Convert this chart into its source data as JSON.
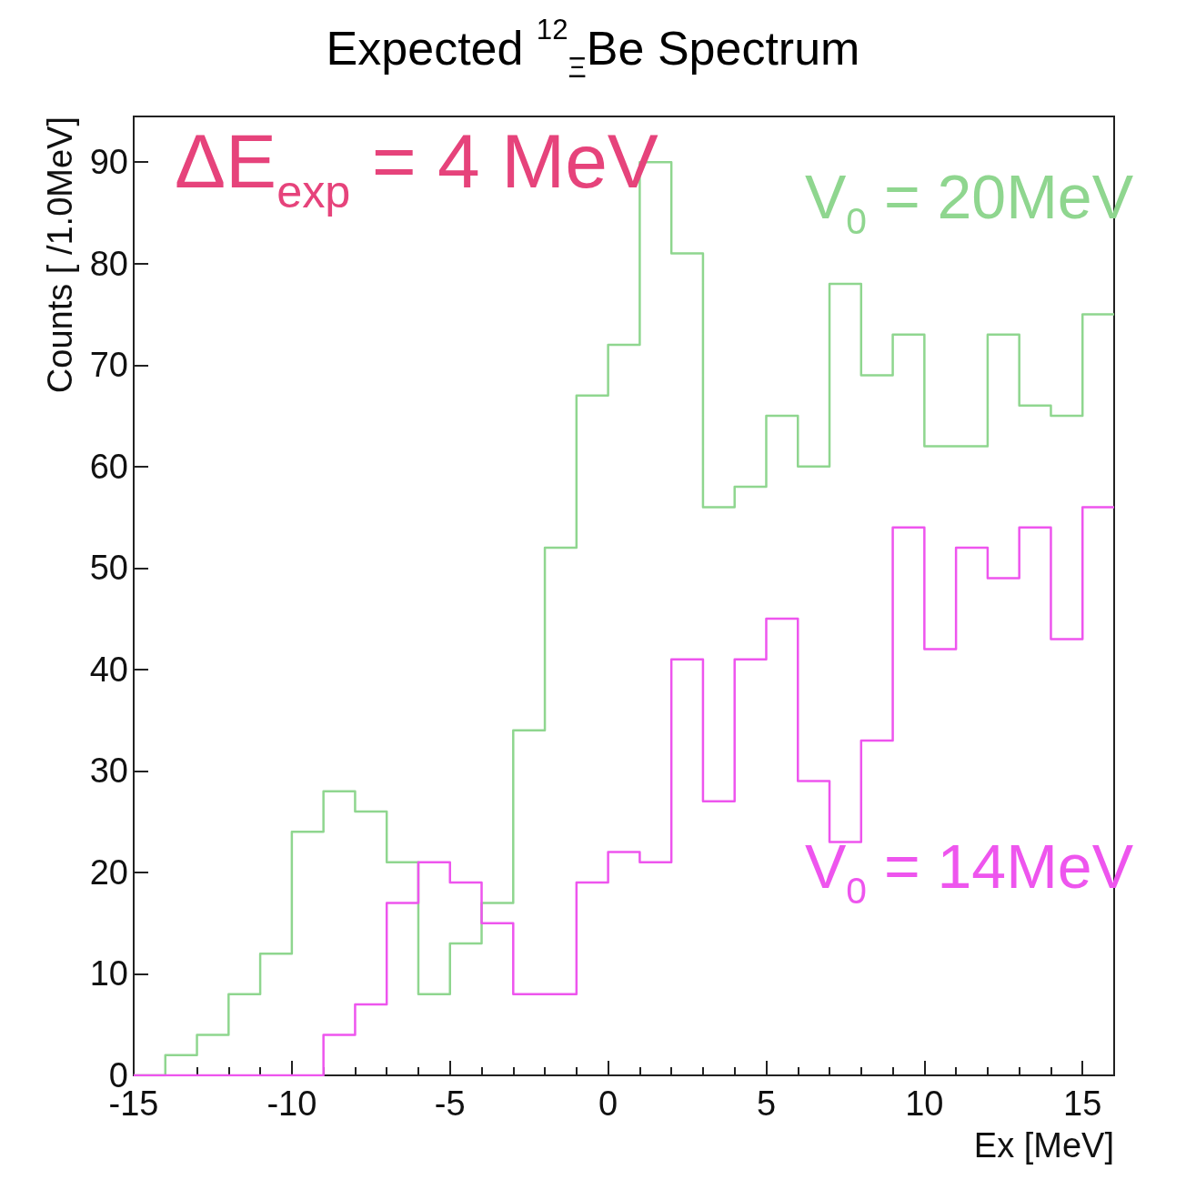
{
  "chart_data": {
    "type": "histogram",
    "title": "Expected $^{12}$$_{Ξ}$Be Spectrum",
    "xlabel": "Ex [MeV]",
    "ylabel": "Counts [ /1.0MeV]",
    "bins": [
      -15,
      -14,
      -13,
      -12,
      -11,
      -10,
      -9,
      -8,
      -7,
      -6,
      -5,
      -4,
      -3,
      -2,
      -1,
      0,
      1,
      2,
      3,
      4,
      5,
      6,
      7,
      8,
      9,
      10,
      11,
      12,
      13,
      14,
      15,
      16
    ],
    "series": [
      {
        "name": "V$_{0}$ = 20MeV",
        "color": "#8fd68f",
        "values": [
          0,
          2,
          4,
          8,
          12,
          24,
          28,
          26,
          21,
          8,
          13,
          17,
          34,
          52,
          67,
          72,
          90,
          81,
          56,
          58,
          65,
          60,
          78,
          69,
          73,
          62,
          62,
          73,
          66,
          65,
          75
        ]
      },
      {
        "name": "V$_{0}$ = 14MeV",
        "color": "#ee55ee",
        "values": [
          0,
          0,
          0,
          0,
          0,
          0,
          4,
          7,
          17,
          21,
          19,
          15,
          8,
          8,
          19,
          22,
          21,
          41,
          27,
          41,
          45,
          29,
          23,
          33,
          54,
          42,
          52,
          49,
          54,
          43,
          56
        ]
      }
    ],
    "annotations": [
      "ΔE$_{exp}$ = 4 MeV"
    ],
    "xlim": [
      -15,
      16
    ],
    "xticks": [
      -15,
      {
        "value": -14,
        "label": null
      },
      {
        "value": -13,
        "label": null
      },
      {
        "value": -12,
        "label": null
      },
      {
        "value": -11,
        "label": null
      },
      -10,
      {
        "value": -9,
        "label": null
      },
      {
        "value": -8,
        "label": null
      },
      {
        "value": -7,
        "label": null
      },
      {
        "value": -6,
        "label": null
      },
      -5,
      {
        "value": -4,
        "label": null
      },
      {
        "value": -3,
        "label": null
      },
      {
        "value": -2,
        "label": null
      },
      {
        "value": -1,
        "label": null
      },
      0,
      {
        "value": 1,
        "label": null
      },
      {
        "value": 2,
        "label": null
      },
      {
        "value": 3,
        "label": null
      },
      {
        "value": 4,
        "label": null
      },
      5,
      {
        "value": 6,
        "label": null
      },
      {
        "value": 7,
        "label": null
      },
      {
        "value": 8,
        "label": null
      },
      {
        "value": 9,
        "label": null
      },
      10,
      {
        "value": 11,
        "label": null
      },
      {
        "value": 12,
        "label": null
      },
      {
        "value": 13,
        "label": null
      },
      {
        "value": 14,
        "label": null
      },
      15
    ],
    "ylim": [
      0,
      94.5
    ],
    "yticks": [
      0,
      10,
      20,
      30,
      40,
      50,
      60,
      70,
      80,
      90
    ]
  }
}
